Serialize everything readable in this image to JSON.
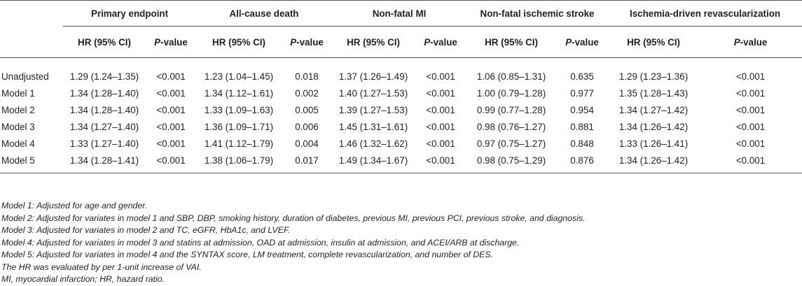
{
  "table": {
    "groups": [
      "Primary endpoint",
      "All-cause death",
      "Non-fatal MI",
      "Non-fatal ischemic stroke",
      "Ischemia-driven revascularization"
    ],
    "hr_label": "HR (95% CI)",
    "p_label_italic": "P",
    "p_label_rest": "-value",
    "rows": [
      {
        "label": "Unadjusted",
        "cells": [
          "1.29 (1.24–1.35)",
          "<0.001",
          "1.23 (1.04–1.45)",
          "0.018",
          "1.37 (1.26–1.49)",
          "<0.001",
          "1.06 (0.85–1.31)",
          "0.635",
          "1.29 (1.23–1.36)",
          "<0.001"
        ]
      },
      {
        "label": "Model 1",
        "cells": [
          "1.34 (1.28–1.40)",
          "<0.001",
          "1.34 (1.12–1.61)",
          "0.002",
          "1.40 (1.27–1.53)",
          "<0.001",
          "1.00 (0.79–1.28)",
          "0.977",
          "1.35 (1.28–1.43)",
          "<0.001"
        ]
      },
      {
        "label": "Model 2",
        "cells": [
          "1.34 (1.28–1.40)",
          "<0.001",
          "1.33 (1.09–1.63)",
          "0.005",
          "1.39 (1.27–1.53)",
          "<0.001",
          "0.99 (0.77–1.28)",
          "0.954",
          "1.34 (1.27–1.42)",
          "<0.001"
        ]
      },
      {
        "label": "Model 3",
        "cells": [
          "1.34 (1.27–1.40)",
          "<0.001",
          "1.36 (1.09–1.71)",
          "0.006",
          "1.45 (1.31–1.61)",
          "<0.001",
          "0.98 (0.76–1.27)",
          "0.881",
          "1.34 (1.26–1.42)",
          "<0.001"
        ]
      },
      {
        "label": "Model 4",
        "cells": [
          "1.33 (1.27–1.40)",
          "<0.001",
          "1.41 (1.12–1.79)",
          "0.004",
          "1.46 (1.32–1.62)",
          "<0.001",
          "0.97 (0.75–1.27)",
          "0.848",
          "1.33 (1.26–1.41)",
          "<0.001"
        ]
      },
      {
        "label": "Model 5",
        "cells": [
          "1.34 (1.28–1.41)",
          "<0.001",
          "1.38 (1.06–1.79)",
          "0.017",
          "1.49 (1.34–1.67)",
          "<0.001",
          "0.98 (0.75–1.29)",
          "0.876",
          "1.34 (1.26–1.42)",
          "<0.001"
        ]
      }
    ]
  },
  "notes": [
    "Model 1: Adjusted for age and gender.",
    "Model 2: Adjusted for variates in model 1 and SBP, DBP, smoking history, duration of diabetes, previous MI, previous PCI, previous stroke, and diagnosis.",
    "Model 3: Adjusted for variates in model 2 and TC, eGFR, HbA1c, and LVEF.",
    "Model 4: Adjusted for variates in model 3 and statins at admission, OAD at admission, insulin at admission, and ACEI/ARB at discharge.",
    "Model 5: Adjusted for variates in model 4 and the SYNTAX score, LM treatment, complete revascularization, and number of DES.",
    "The HR was evaluated by per 1-unit increase of VAI.",
    "MI, myocardial infarction; HR, hazard ratio."
  ]
}
